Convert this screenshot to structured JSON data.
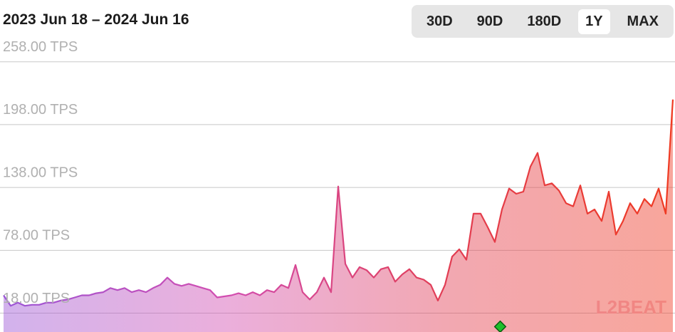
{
  "chart_data": {
    "type": "line",
    "title": "2023 Jun 18 – 2024 Jun 16",
    "values": [
      35,
      25,
      28,
      25,
      26,
      26,
      28,
      28,
      30,
      31,
      33,
      35,
      35,
      37,
      38,
      42,
      40,
      42,
      38,
      40,
      38,
      42,
      45,
      52,
      46,
      44,
      46,
      44,
      42,
      40,
      33,
      34,
      35,
      37,
      35,
      38,
      35,
      40,
      38,
      45,
      42,
      64,
      38,
      31,
      38,
      52,
      38,
      139,
      65,
      52,
      62,
      59,
      52,
      60,
      62,
      48,
      55,
      60,
      52,
      50,
      45,
      30,
      45,
      72,
      79,
      69,
      113,
      113,
      100,
      86,
      117,
      137,
      132,
      134,
      158,
      171,
      140,
      142,
      135,
      123,
      120,
      140,
      113,
      117,
      106,
      134,
      93,
      106,
      123,
      113,
      127,
      120,
      137,
      113,
      222
    ],
    "colors": [
      "#9b55d6",
      "#d24db0",
      "#e23d52",
      "#ef3a22"
    ],
    "ylim": [
      0,
      317
    ],
    "yticks": [
      {
        "value": 18,
        "label": "18.00 TPS"
      },
      {
        "value": 78,
        "label": "78.00 TPS"
      },
      {
        "value": 138,
        "label": "138.00 TPS"
      },
      {
        "value": 198,
        "label": "198.00 TPS"
      },
      {
        "value": 258,
        "label": "258.00 TPS"
      }
    ],
    "grid": true,
    "watermark": "L2BEAT"
  },
  "range_buttons": {
    "labels": [
      "30D",
      "90D",
      "180D",
      "1Y",
      "MAX"
    ],
    "selected": 3
  }
}
